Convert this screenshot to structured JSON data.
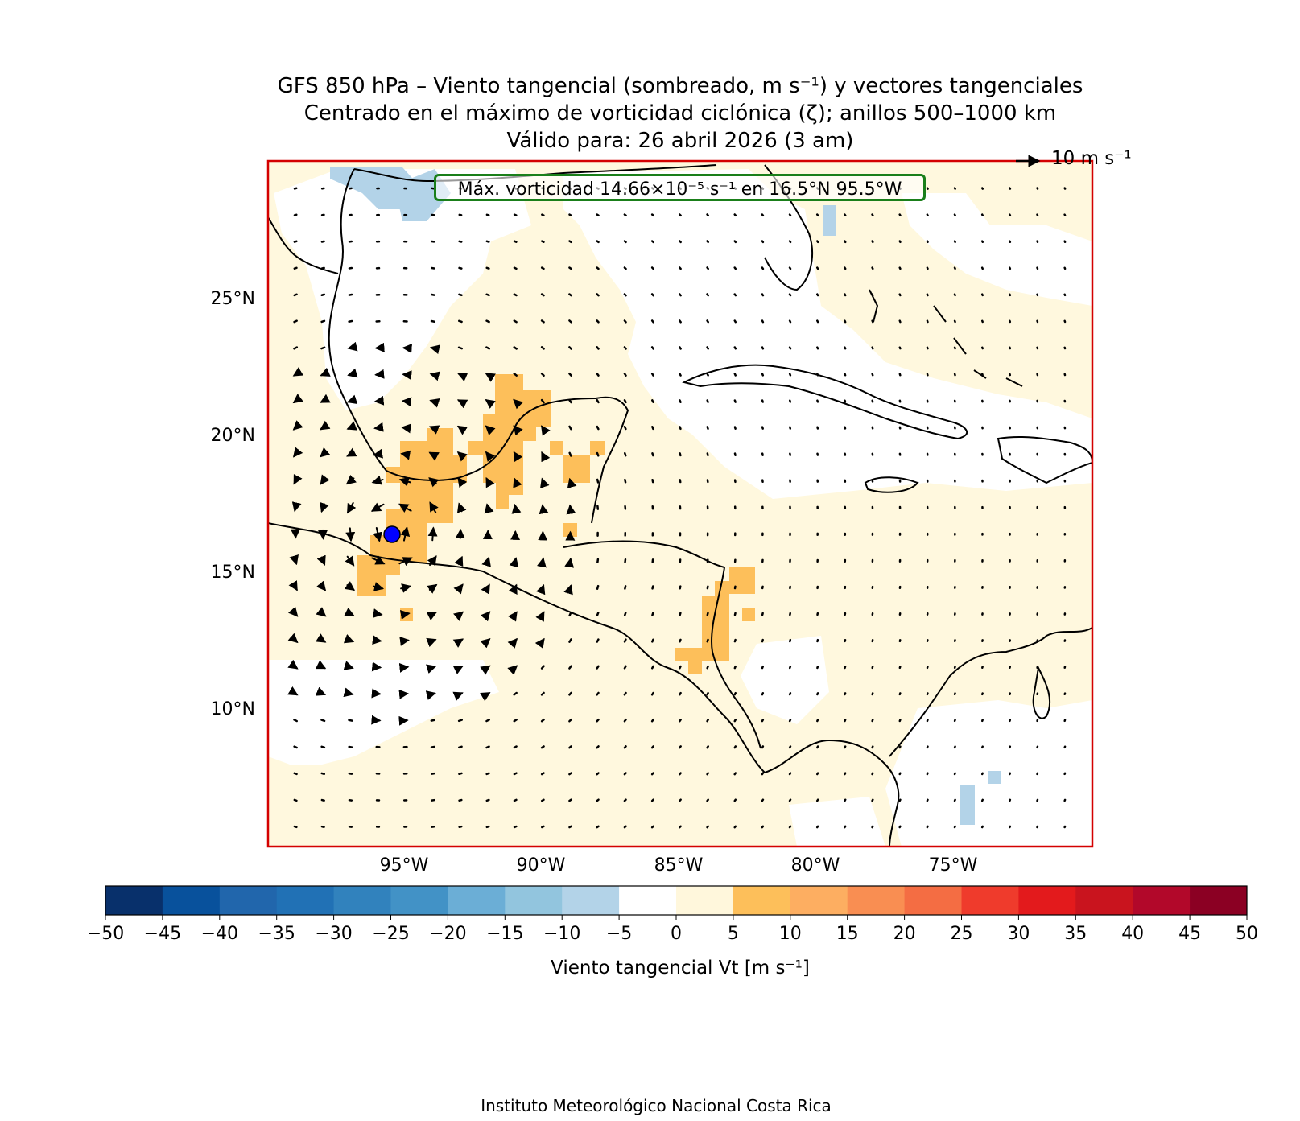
{
  "title": {
    "line1": "GFS 850 hPa – Viento tangencial (sombreado, m s⁻¹) y vectores tangenciales",
    "line2": "Centrado en el máximo de vorticidad ciclónica (ζ); anillos 500–1000 km",
    "line3": "Válido para: 26 abril 2026 (3 am)"
  },
  "annotation": "Máx. vorticidad 14.66×10⁻⁵ s⁻¹ en 16.5°N 95.5°W",
  "reference_vector": "10 m s⁻¹",
  "lat_labels": [
    "25°N",
    "20°N",
    "15°N",
    "10°N"
  ],
  "lon_labels": [
    "95°W",
    "90°W",
    "85°W",
    "80°W",
    "75°W"
  ],
  "colorbar": {
    "title": "Viento tangencial Vt [m s⁻¹]",
    "ticks": [
      "−50",
      "−45",
      "−40",
      "−35",
      "−30",
      "−25",
      "−20",
      "−15",
      "−10",
      "−5",
      "0",
      "5",
      "10",
      "15",
      "20",
      "25",
      "30",
      "35",
      "40",
      "45",
      "50"
    ],
    "colors": [
      "#08306b",
      "#08519c",
      "#2166ac",
      "#2171b5",
      "#3182bd",
      "#4292c6",
      "#6baed6",
      "#92c5de",
      "#b3d3e8",
      "#ffffff",
      "#fff7dc",
      "#fdbf5a",
      "#fdae61",
      "#f98e52",
      "#f46d43",
      "#ef3b2c",
      "#e31a1c",
      "#c9141e",
      "#b2082a",
      "#8b0023"
    ]
  },
  "center_marker": {
    "lat": 16.5,
    "lon": -95.5
  },
  "map_extent": {
    "lon_min": -100,
    "lon_max": -70,
    "lat_min": 5,
    "lat_max": 30
  },
  "footer": "Instituto Meteorológico Nacional Costa Rica"
}
